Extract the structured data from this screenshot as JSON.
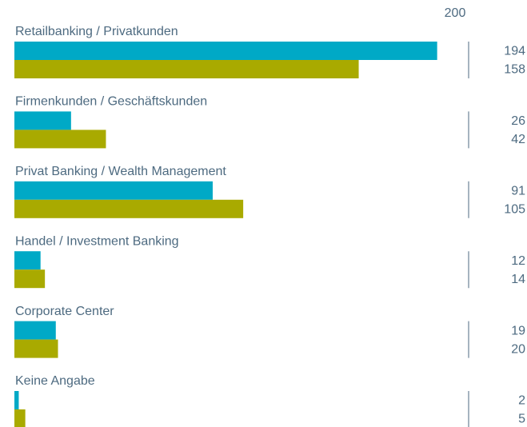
{
  "chart_data": {
    "type": "bar",
    "orientation": "horizontal",
    "categories": [
      "Retailbanking / Privatkunden",
      "Firmenkunden / Geschäftskunden",
      "Privat Banking / Wealth Management",
      "Handel / Investment Banking",
      "Corporate Center",
      "Keine Angabe"
    ],
    "series": [
      {
        "color": "#00a9c6",
        "values": [
          194,
          26,
          91,
          12,
          19,
          2
        ]
      },
      {
        "color": "#a9aa00",
        "values": [
          158,
          42,
          105,
          14,
          20,
          5
        ]
      }
    ],
    "xlim": [
      0,
      200
    ],
    "xticks": [
      200
    ]
  }
}
